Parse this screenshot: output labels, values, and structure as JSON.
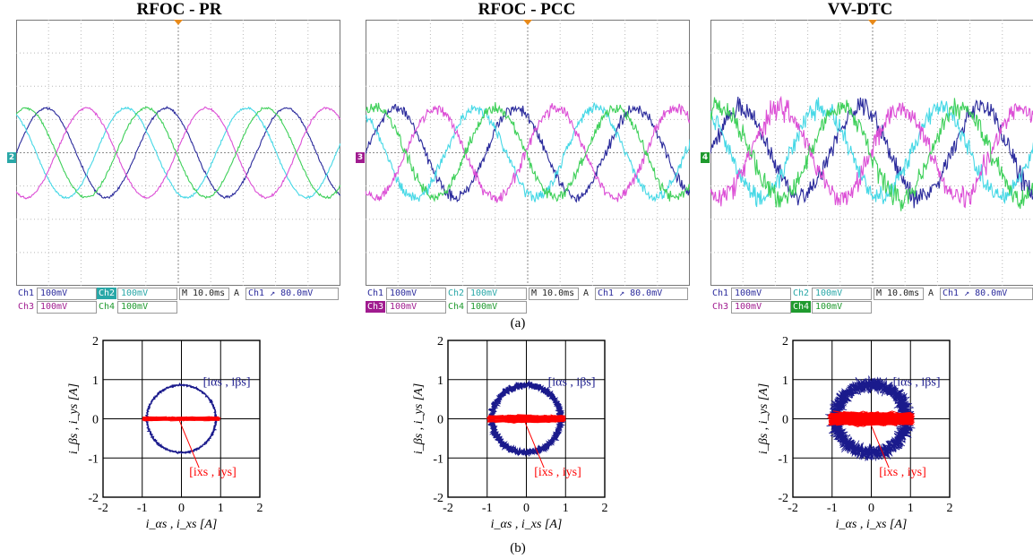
{
  "labels": {
    "a": "(a)",
    "b": "(b)"
  },
  "scope_panels": [
    {
      "title": "RFOC - PR",
      "ref_marker": "2",
      "ref_color": "#29a7a7",
      "readout": {
        "ch1": "Ch1",
        "ch1_val": "100mV",
        "ch2": "Ch2",
        "ch2_val": "100mV",
        "ch3": "Ch3",
        "ch3_val": "100mV",
        "ch4": "Ch4",
        "ch4_val": "100mV",
        "timebase": "M 10.0ms",
        "trig_mode": "A",
        "trig_src": "Ch1",
        "trig_sym": "↗",
        "trig_level": "80.0mV"
      },
      "highlight": "ch2"
    },
    {
      "title": "RFOC - PCC",
      "ref_marker": "3",
      "ref_color": "#a01b8f",
      "readout": {
        "ch1": "Ch1",
        "ch1_val": "100mV",
        "ch2": "Ch2",
        "ch2_val": "100mV",
        "ch3": "Ch3",
        "ch3_val": "100mV",
        "ch4": "Ch4",
        "ch4_val": "100mV",
        "timebase": "M 10.0ms",
        "trig_mode": "A",
        "trig_src": "Ch1",
        "trig_sym": "↗",
        "trig_level": "80.0mV"
      },
      "highlight": "ch3"
    },
    {
      "title": "VV-DTC",
      "ref_marker": "4",
      "ref_color": "#1f9a2e",
      "readout": {
        "ch1": "Ch1",
        "ch1_val": "100mV",
        "ch2": "Ch2",
        "ch2_val": "100mV",
        "ch3": "Ch3",
        "ch3_val": "100mV",
        "ch4": "Ch4",
        "ch4_val": "100mV",
        "timebase": "M 10.0ms",
        "trig_mode": "A",
        "trig_src": "Ch1",
        "trig_sym": "↗",
        "trig_level": "80.0mV"
      },
      "highlight": "ch4"
    }
  ],
  "chart_data": [
    {
      "type": "line",
      "title": "RFOC - PR",
      "series": [
        {
          "name": "Ch1",
          "color": "#2b2b9c",
          "amplitude": 1.0,
          "phase": 0
        },
        {
          "name": "Ch2",
          "color": "#46d8e6",
          "amplitude": 1.0,
          "phase": 120
        },
        {
          "name": "Ch3",
          "color": "#dc4fd6",
          "amplitude": 1.0,
          "phase": 240
        },
        {
          "name": "Ch4",
          "color": "#3fd05a",
          "amplitude": 1.0,
          "phase": 60
        }
      ],
      "noise": 0.04,
      "periods_shown": 2.7,
      "grid": true
    },
    {
      "type": "line",
      "title": "RFOC - PCC",
      "series": [
        {
          "name": "Ch1",
          "color": "#2b2b9c",
          "amplitude": 1.0,
          "phase": 0
        },
        {
          "name": "Ch2",
          "color": "#46d8e6",
          "amplitude": 1.0,
          "phase": 120
        },
        {
          "name": "Ch3",
          "color": "#dc4fd6",
          "amplitude": 1.0,
          "phase": 240
        },
        {
          "name": "Ch4",
          "color": "#3fd05a",
          "amplitude": 1.0,
          "phase": 60
        }
      ],
      "noise": 0.18,
      "periods_shown": 2.7,
      "grid": true
    },
    {
      "type": "line",
      "title": "VV-DTC",
      "series": [
        {
          "name": "Ch1",
          "color": "#2b2b9c",
          "amplitude": 1.0,
          "phase": 0
        },
        {
          "name": "Ch2",
          "color": "#46d8e6",
          "amplitude": 1.0,
          "phase": 120
        },
        {
          "name": "Ch3",
          "color": "#dc4fd6",
          "amplitude": 1.0,
          "phase": 240
        },
        {
          "name": "Ch4",
          "color": "#3fd05a",
          "amplitude": 1.0,
          "phase": 60
        }
      ],
      "noise": 0.35,
      "periods_shown": 2.7,
      "grid": true
    },
    {
      "type": "scatter",
      "xlabel": "i_αs , i_xs [A]",
      "ylabel": "i_βs , i_ys [A]",
      "xlim": [
        -2,
        2
      ],
      "ylim": [
        -2,
        2
      ],
      "xticks": [
        -2,
        -1,
        0,
        1,
        2
      ],
      "yticks": [
        -2,
        -1,
        0,
        1,
        2
      ],
      "grid": true,
      "series": [
        {
          "name": "[iαs , iβs]",
          "color": "#1a1a8c",
          "shape": "circle",
          "radius": 0.88,
          "spread": 0.04
        },
        {
          "name": "[ixs , iys]",
          "color": "#ff0000",
          "shape": "band",
          "x_range": [
            -1.0,
            1.0
          ],
          "y_spread": 0.06
        }
      ]
    },
    {
      "type": "scatter",
      "xlabel": "i_αs , i_xs [A]",
      "ylabel": "i_βs , i_ys [A]",
      "xlim": [
        -2,
        2
      ],
      "ylim": [
        -2,
        2
      ],
      "xticks": [
        -2,
        -1,
        0,
        1,
        2
      ],
      "yticks": [
        -2,
        -1,
        0,
        1,
        2
      ],
      "grid": true,
      "series": [
        {
          "name": "[iαs , iβs]",
          "color": "#1a1a8c",
          "shape": "circle",
          "radius": 0.88,
          "spread": 0.12
        },
        {
          "name": "[ixs , iys]",
          "color": "#ff0000",
          "shape": "band",
          "x_range": [
            -1.0,
            1.0
          ],
          "y_spread": 0.12
        }
      ]
    },
    {
      "type": "scatter",
      "xlabel": "i_αs , i_xs [A]",
      "ylabel": "i_βs , i_ys [A]",
      "xlim": [
        -2,
        2
      ],
      "ylim": [
        -2,
        2
      ],
      "xticks": [
        -2,
        -1,
        0,
        1,
        2
      ],
      "yticks": [
        -2,
        -1,
        0,
        1,
        2
      ],
      "grid": true,
      "series": [
        {
          "name": "[iαs , iβs]",
          "color": "#1a1a8c",
          "shape": "circle",
          "radius": 0.9,
          "spread": 0.28
        },
        {
          "name": "[ixs , iys]",
          "color": "#ff0000",
          "shape": "band",
          "x_range": [
            -1.1,
            1.1
          ],
          "y_spread": 0.22
        }
      ]
    }
  ]
}
